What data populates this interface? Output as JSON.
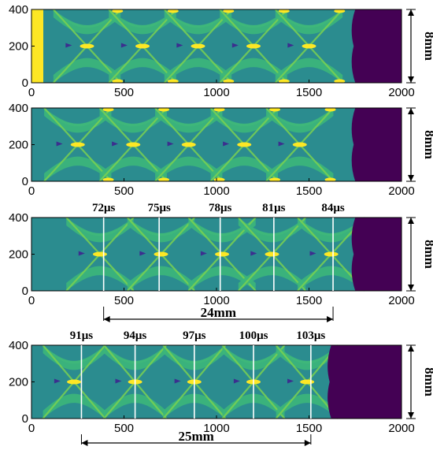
{
  "panels": [
    {
      "id": "panel-1",
      "x_ticks": [
        "0",
        "500",
        "1000",
        "1500",
        "2000"
      ],
      "y_ticks": [
        "0",
        "200",
        "400"
      ],
      "height_label": "8mm",
      "time_labels": [],
      "distance_label": ""
    },
    {
      "id": "panel-2",
      "x_ticks": [
        "0",
        "500",
        "1000",
        "1500",
        "2000"
      ],
      "y_ticks": [
        "0",
        "200",
        "400"
      ],
      "height_label": "8mm",
      "time_labels": [],
      "distance_label": ""
    },
    {
      "id": "panel-3",
      "x_ticks": [
        "0",
        "500",
        "1000",
        "1500",
        "2000"
      ],
      "y_ticks": [
        "0",
        "200",
        "400"
      ],
      "height_label": "8mm",
      "time_labels": [
        "72μs",
        "75μs",
        "78μs",
        "81μs",
        "84μs"
      ],
      "distance_label": "24mm"
    },
    {
      "id": "panel-4",
      "x_ticks": [
        "0",
        "500",
        "1000",
        "1500",
        "2000"
      ],
      "y_ticks": [
        "0",
        "200",
        "400"
      ],
      "height_label": "8mm",
      "time_labels": [
        "91μs",
        "94μs",
        "97μs",
        "100μs",
        "103μs"
      ],
      "distance_label": "25mm"
    }
  ],
  "colors": {
    "background_field": "#2e8b8b",
    "teal_mid": "#2a9d8f",
    "light_green": "#4fc07a",
    "bright_green": "#7ad151",
    "yellow": "#fde725",
    "dark_purple": "#440154",
    "violet": "#3b2f8f",
    "marker_line": "#ffffff"
  }
}
